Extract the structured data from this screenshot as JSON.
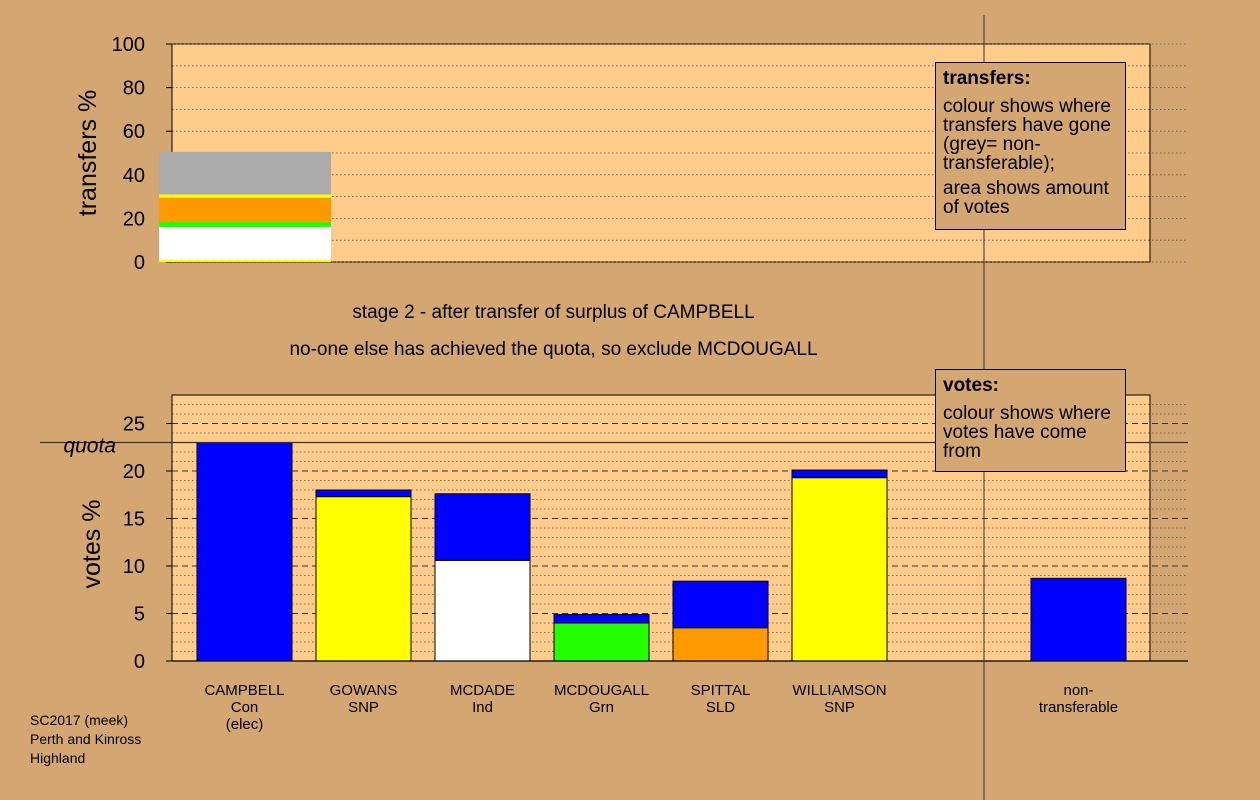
{
  "colors": {
    "background": "#d4a772",
    "plot_background": "#ffcc8c",
    "Con": "#0000ff",
    "SNP": "#ffff00",
    "Ind": "#ffffff",
    "Grn": "#22ff00",
    "SLD": "#ff9900",
    "non_transferable": "#aaaaaa"
  },
  "stage_text": {
    "line1": "stage 2 - after transfer of surplus of CAMPBELL",
    "line2": "no-one else has achieved the quota, so exclude MCDOUGALL"
  },
  "transfers_box": {
    "title": "transfers:",
    "text1": "colour shows where transfers have gone (grey= non-transferable);",
    "text2": "area shows amount of votes"
  },
  "votes_box": {
    "title": "votes:",
    "text1": "colour shows where votes have come from"
  },
  "footer": {
    "line1": "SC2017 (meek)",
    "line2": "Perth and Kinross",
    "line3": "Highland"
  },
  "chart_data": [
    {
      "type": "bar",
      "subtype": "stacked",
      "ylabel": "transfers %",
      "ylim": [
        0,
        100
      ],
      "yticks": [
        0,
        20,
        40,
        60,
        80,
        100
      ],
      "grid": "dotted",
      "bar": {
        "segments": [
          {
            "color_key": "SNP",
            "from": 0,
            "to": 1
          },
          {
            "color_key": "Ind",
            "from": 1,
            "to": 16
          },
          {
            "color_key": "Grn",
            "from": 16,
            "to": 18.5
          },
          {
            "color_key": "SLD",
            "from": 18.5,
            "to": 29.5
          },
          {
            "color_key": "SNP",
            "from": 29.5,
            "to": 31
          },
          {
            "color_key": "non_transferable",
            "from": 31,
            "to": 50.5
          }
        ]
      }
    },
    {
      "type": "bar",
      "subtype": "stacked",
      "ylabel": "votes %",
      "ylim": [
        0,
        28
      ],
      "yticks": [
        0,
        5,
        10,
        15,
        20,
        25
      ],
      "quota": 23,
      "quota_label": "quota",
      "grid": "dotted",
      "categories": [
        {
          "label": [
            "CAMPBELL",
            "Con",
            "(elec)"
          ],
          "segments": [
            {
              "color_key": "Con",
              "value": 23
            }
          ]
        },
        {
          "label": [
            "GOWANS",
            "SNP"
          ],
          "segments": [
            {
              "color_key": "SNP",
              "value": 17.3
            },
            {
              "color_key": "Con",
              "value": 0.7
            }
          ]
        },
        {
          "label": [
            "MCDADE",
            "Ind"
          ],
          "segments": [
            {
              "color_key": "Ind",
              "value": 10.6
            },
            {
              "color_key": "Con",
              "value": 7
            }
          ]
        },
        {
          "label": [
            "MCDOUGALL",
            "Grn"
          ],
          "segments": [
            {
              "color_key": "Grn",
              "value": 4
            },
            {
              "color_key": "Con",
              "value": 0.9
            }
          ]
        },
        {
          "label": [
            "SPITTAL",
            "SLD"
          ],
          "segments": [
            {
              "color_key": "SLD",
              "value": 3.5
            },
            {
              "color_key": "Con",
              "value": 4.9
            }
          ]
        },
        {
          "label": [
            "WILLIAMSON",
            "SNP"
          ],
          "segments": [
            {
              "color_key": "SNP",
              "value": 19.3
            },
            {
              "color_key": "Con",
              "value": 0.8
            }
          ]
        },
        {
          "label": [
            "non-",
            "transferable"
          ],
          "segments": [
            {
              "color_key": "Con",
              "value": 8.7
            }
          ]
        }
      ]
    }
  ]
}
